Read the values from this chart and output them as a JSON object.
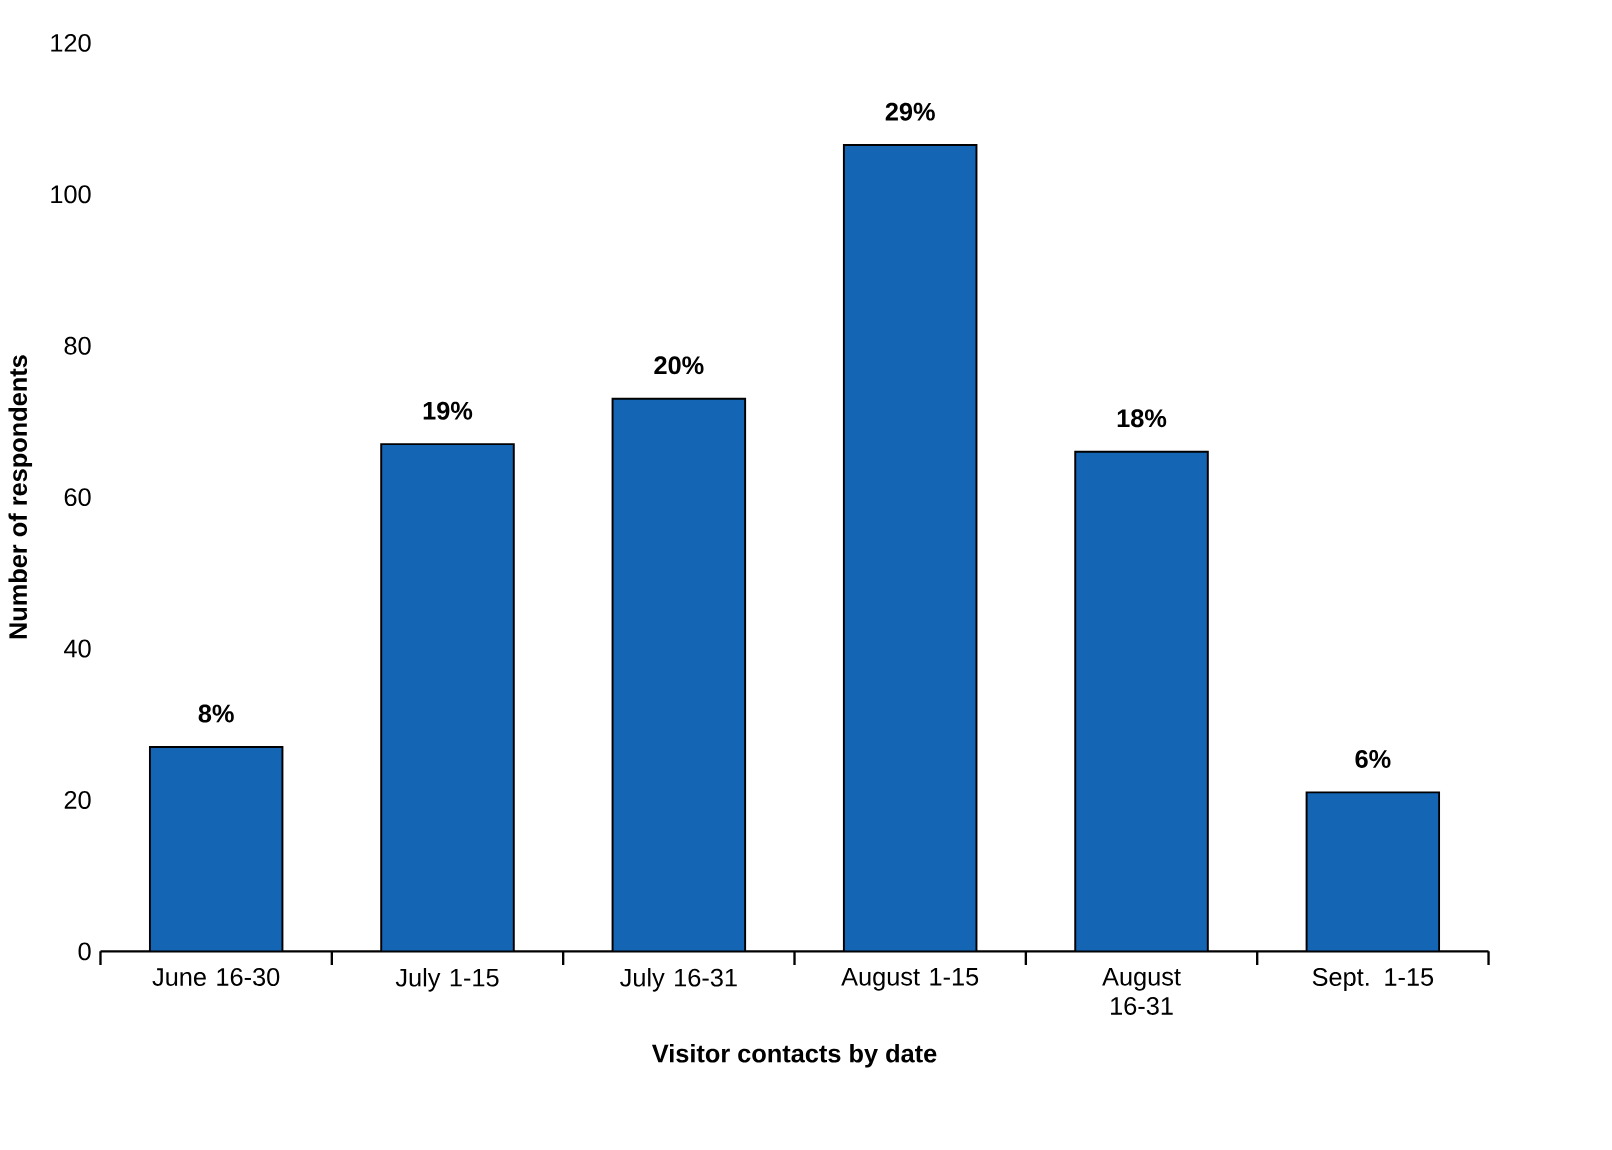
{
  "chart_data": {
    "type": "bar",
    "xlabel": "Visitor contacts by date",
    "ylabel": "Number of respondents",
    "categories": [
      "June 16-30",
      "July 1-15",
      "July 16-31",
      "August 1-15",
      "August 16-31",
      "Sept. 1-15"
    ],
    "values": [
      27,
      67,
      73,
      106.5,
      66,
      21
    ],
    "annotations": [
      {
        "text": "8%",
        "x": "June 16-30",
        "y": 27
      },
      {
        "text": "19%",
        "x": "July 1-15",
        "y": 67
      },
      {
        "text": "20%",
        "x": "July 16-31",
        "y": 73
      },
      {
        "text": "29%",
        "x": "August 1-15",
        "y": 106.5
      },
      {
        "text": "18%",
        "x": "August 16-31",
        "y": 66
      },
      {
        "text": "6%",
        "x": "Sept. 1-15",
        "y": 21
      }
    ],
    "color": "#1565b5",
    "ylim": [
      0,
      120
    ],
    "yticks": [
      0,
      20,
      40,
      60,
      80,
      100,
      120
    ],
    "grid": false
  }
}
